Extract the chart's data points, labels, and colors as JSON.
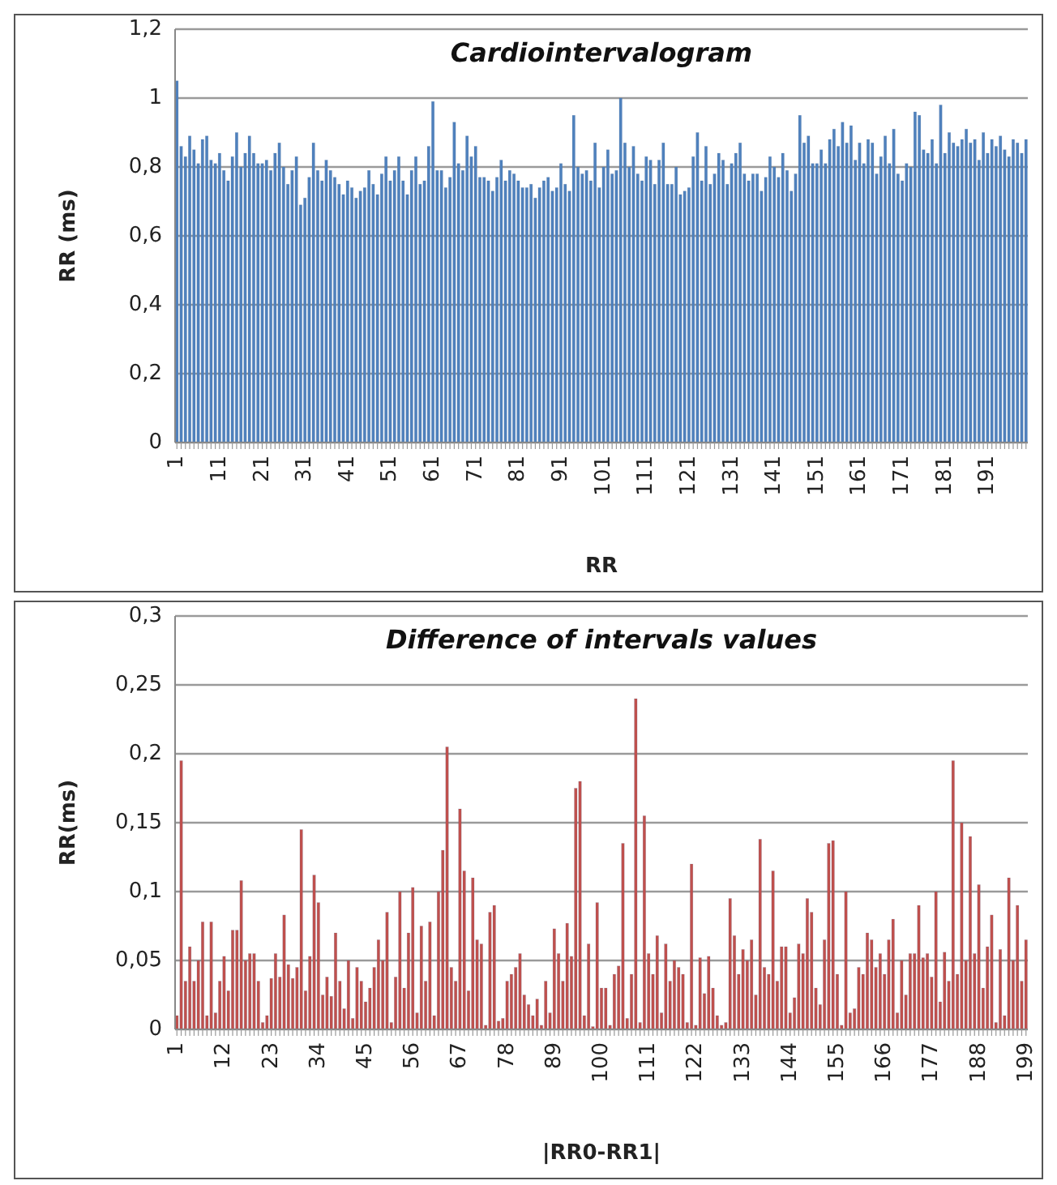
{
  "chart_data": [
    {
      "type": "bar",
      "title": "Cardiointervalogram",
      "xlabel": "RR",
      "ylabel": "RR (ms)",
      "grid": "y",
      "ylim": [
        0,
        1.2
      ],
      "yticks": [
        {
          "value": 0,
          "label": "0"
        },
        {
          "value": 0.2,
          "label": "0,2"
        },
        {
          "value": 0.4,
          "label": "0,4"
        },
        {
          "value": 0.6,
          "label": "0,6"
        },
        {
          "value": 0.8,
          "label": "0,8"
        },
        {
          "value": 1,
          "label": "1"
        },
        {
          "value": 1.2,
          "label": "1,2"
        }
      ],
      "categories": [
        "1",
        null,
        null,
        null,
        null,
        null,
        null,
        null,
        null,
        null,
        "11",
        null,
        null,
        null,
        null,
        null,
        null,
        null,
        null,
        null,
        "21",
        null,
        null,
        null,
        null,
        null,
        null,
        null,
        null,
        null,
        "31",
        null,
        null,
        null,
        null,
        null,
        null,
        null,
        null,
        null,
        "41",
        null,
        null,
        null,
        null,
        null,
        null,
        null,
        null,
        null,
        "51",
        null,
        null,
        null,
        null,
        null,
        null,
        null,
        null,
        null,
        "61",
        null,
        null,
        null,
        null,
        null,
        null,
        null,
        null,
        null,
        "71",
        null,
        null,
        null,
        null,
        null,
        null,
        null,
        null,
        null,
        "81",
        null,
        null,
        null,
        null,
        null,
        null,
        null,
        null,
        null,
        "91",
        null,
        null,
        null,
        null,
        null,
        null,
        null,
        null,
        null,
        "101",
        null,
        null,
        null,
        null,
        null,
        null,
        null,
        null,
        null,
        "111",
        null,
        null,
        null,
        null,
        null,
        null,
        null,
        null,
        null,
        "121",
        null,
        null,
        null,
        null,
        null,
        null,
        null,
        null,
        null,
        "131",
        null,
        null,
        null,
        null,
        null,
        null,
        null,
        null,
        null,
        "141",
        null,
        null,
        null,
        null,
        null,
        null,
        null,
        null,
        null,
        "151",
        null,
        null,
        null,
        null,
        null,
        null,
        null,
        null,
        null,
        "161",
        null,
        null,
        null,
        null,
        null,
        null,
        null,
        null,
        null,
        "171",
        null,
        null,
        null,
        null,
        null,
        null,
        null,
        null,
        null,
        "181",
        null,
        null,
        null,
        null,
        null,
        null,
        null,
        null,
        null,
        "191",
        null,
        null,
        null,
        null,
        null,
        null,
        null,
        null,
        null
      ],
      "series": [
        {
          "color": "#4f81bd",
          "values": [
            1.05,
            0.86,
            0.83,
            0.89,
            0.85,
            0.81,
            0.88,
            0.89,
            0.82,
            0.81,
            0.84,
            0.79,
            0.76,
            0.83,
            0.9,
            0.8,
            0.84,
            0.89,
            0.84,
            0.81,
            0.81,
            0.82,
            0.79,
            0.84,
            0.87,
            0.8,
            0.75,
            0.79,
            0.83,
            0.69,
            0.71,
            0.77,
            0.87,
            0.79,
            0.76,
            0.82,
            0.79,
            0.77,
            0.75,
            0.72,
            0.76,
            0.74,
            0.71,
            0.73,
            0.74,
            0.79,
            0.75,
            0.72,
            0.78,
            0.83,
            0.76,
            0.79,
            0.83,
            0.76,
            0.72,
            0.79,
            0.83,
            0.75,
            0.76,
            0.86,
            0.99,
            0.79,
            0.79,
            0.74,
            0.77,
            0.93,
            0.81,
            0.79,
            0.89,
            0.83,
            0.86,
            0.77,
            0.77,
            0.76,
            0.73,
            0.77,
            0.82,
            0.76,
            0.79,
            0.78,
            0.76,
            0.74,
            0.74,
            0.75,
            0.71,
            0.74,
            0.76,
            0.77,
            0.73,
            0.74,
            0.81,
            0.75,
            0.73,
            0.95,
            0.8,
            0.78,
            0.79,
            0.76,
            0.87,
            0.74,
            0.8,
            0.85,
            0.78,
            0.79,
            1.0,
            0.87,
            0.8,
            0.86,
            0.78,
            0.76,
            0.83,
            0.82,
            0.75,
            0.82,
            0.87,
            0.75,
            0.75,
            0.8,
            0.72,
            0.73,
            0.74,
            0.83,
            0.9,
            0.76,
            0.86,
            0.75,
            0.78,
            0.84,
            0.82,
            0.75,
            0.81,
            0.84,
            0.87,
            0.78,
            0.76,
            0.78,
            0.78,
            0.73,
            0.77,
            0.83,
            0.8,
            0.77,
            0.84,
            0.79,
            0.73,
            0.78,
            0.95,
            0.87,
            0.89,
            0.81,
            0.81,
            0.85,
            0.81,
            0.88,
            0.91,
            0.86,
            0.93,
            0.87,
            0.92,
            0.82,
            0.87,
            0.81,
            0.88,
            0.87,
            0.78,
            0.83,
            0.89,
            0.81,
            0.91,
            0.78,
            0.76,
            0.81,
            0.8,
            0.96,
            0.95,
            0.85,
            0.84,
            0.88,
            0.81,
            0.98,
            0.84,
            0.9,
            0.87,
            0.86,
            0.88,
            0.91,
            0.87,
            0.88,
            0.82,
            0.9,
            0.84,
            0.88,
            0.86,
            0.89,
            0.85,
            0.83,
            0.88,
            0.87,
            0.84,
            0.88
          ]
        }
      ]
    },
    {
      "type": "bar",
      "title": "Difference of intervals values",
      "xlabel": "|RR0-RR1|",
      "ylabel": "RR(ms)",
      "grid": "y",
      "ylim": [
        0,
        0.3
      ],
      "yticks": [
        {
          "value": 0,
          "label": "0"
        },
        {
          "value": 0.05,
          "label": "0,05"
        },
        {
          "value": 0.1,
          "label": "0,1"
        },
        {
          "value": 0.15,
          "label": "0,15"
        },
        {
          "value": 0.2,
          "label": "0,2"
        },
        {
          "value": 0.25,
          "label": "0,25"
        },
        {
          "value": 0.3,
          "label": "0,3"
        }
      ],
      "categories": [
        "1",
        null,
        null,
        null,
        null,
        null,
        null,
        null,
        null,
        null,
        null,
        "12",
        null,
        null,
        null,
        null,
        null,
        null,
        null,
        null,
        null,
        null,
        "23",
        null,
        null,
        null,
        null,
        null,
        null,
        null,
        null,
        null,
        null,
        "34",
        null,
        null,
        null,
        null,
        null,
        null,
        null,
        null,
        null,
        null,
        "45",
        null,
        null,
        null,
        null,
        null,
        null,
        null,
        null,
        null,
        null,
        "56",
        null,
        null,
        null,
        null,
        null,
        null,
        null,
        null,
        null,
        null,
        "67",
        null,
        null,
        null,
        null,
        null,
        null,
        null,
        null,
        null,
        null,
        "78",
        null,
        null,
        null,
        null,
        null,
        null,
        null,
        null,
        null,
        null,
        "89",
        null,
        null,
        null,
        null,
        null,
        null,
        null,
        null,
        null,
        null,
        "100",
        null,
        null,
        null,
        null,
        null,
        null,
        null,
        null,
        null,
        null,
        "111",
        null,
        null,
        null,
        null,
        null,
        null,
        null,
        null,
        null,
        null,
        "122",
        null,
        null,
        null,
        null,
        null,
        null,
        null,
        null,
        null,
        null,
        "133",
        null,
        null,
        null,
        null,
        null,
        null,
        null,
        null,
        null,
        null,
        "144",
        null,
        null,
        null,
        null,
        null,
        null,
        null,
        null,
        null,
        null,
        "155",
        null,
        null,
        null,
        null,
        null,
        null,
        null,
        null,
        null,
        null,
        "166",
        null,
        null,
        null,
        null,
        null,
        null,
        null,
        null,
        null,
        null,
        "177",
        null,
        null,
        null,
        null,
        null,
        null,
        null,
        null,
        null,
        null,
        "188",
        null,
        null,
        null,
        null,
        null,
        null,
        null,
        null,
        null,
        null,
        "199"
      ],
      "series": [
        {
          "color": "#c0504d",
          "values": [
            0.01,
            0.195,
            0.035,
            0.06,
            0.035,
            0.05,
            0.078,
            0.01,
            0.078,
            0.012,
            0.035,
            0.053,
            0.028,
            0.072,
            0.072,
            0.108,
            0.05,
            0.055,
            0.055,
            0.035,
            0.005,
            0.01,
            0.037,
            0.055,
            0.038,
            0.083,
            0.047,
            0.037,
            0.045,
            0.145,
            0.028,
            0.053,
            0.112,
            0.092,
            0.025,
            0.038,
            0.024,
            0.07,
            0.035,
            0.015,
            0.05,
            0.008,
            0.045,
            0.035,
            0.02,
            0.03,
            0.045,
            0.065,
            0.05,
            0.085,
            0.005,
            0.038,
            0.1,
            0.03,
            0.07,
            0.103,
            0.012,
            0.075,
            0.035,
            0.078,
            0.01,
            0.1,
            0.13,
            0.205,
            0.045,
            0.035,
            0.16,
            0.115,
            0.028,
            0.11,
            0.065,
            0.062,
            0.003,
            0.085,
            0.09,
            0.006,
            0.008,
            0.035,
            0.04,
            0.045,
            0.055,
            0.025,
            0.018,
            0.01,
            0.022,
            0.003,
            0.035,
            0.012,
            0.073,
            0.055,
            0.035,
            0.077,
            0.053,
            0.175,
            0.18,
            0.01,
            0.062,
            0.002,
            0.092,
            0.03,
            0.03,
            0.003,
            0.04,
            0.046,
            0.135,
            0.008,
            0.04,
            0.24,
            0.005,
            0.155,
            0.055,
            0.04,
            0.068,
            0.012,
            0.062,
            0.035,
            0.05,
            0.045,
            0.04,
            0.005,
            0.12,
            0.003,
            0.052,
            0.026,
            0.053,
            0.03,
            0.01,
            0.003,
            0.005,
            0.095,
            0.068,
            0.04,
            0.058,
            0.05,
            0.065,
            0.025,
            0.138,
            0.045,
            0.04,
            0.115,
            0.035,
            0.06,
            0.06,
            0.012,
            0.023,
            0.062,
            0.055,
            0.095,
            0.085,
            0.03,
            0.018,
            0.065,
            0.135,
            0.137,
            0.04,
            0.003,
            0.1,
            0.012,
            0.015,
            0.045,
            0.04,
            0.07,
            0.065,
            0.045,
            0.055,
            0.04,
            0.065,
            0.08,
            0.012,
            0.05,
            0.025,
            0.055,
            0.055,
            0.09,
            0.052,
            0.055,
            0.038,
            0.1,
            0.02,
            0.056,
            0.035,
            0.195,
            0.04,
            0.15,
            0.05,
            0.14,
            0.055,
            0.105,
            0.03,
            0.06,
            0.083,
            0.005,
            0.058,
            0.01,
            0.11,
            0.05,
            0.09,
            0.035,
            0.065
          ]
        }
      ]
    }
  ]
}
